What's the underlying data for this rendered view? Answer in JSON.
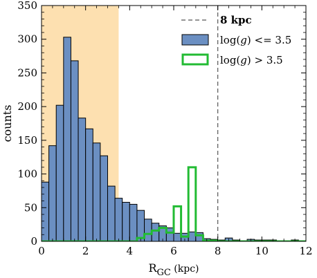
{
  "chart_data": {
    "type": "histogram",
    "xlabel": {
      "main": "R",
      "sub": "GC",
      "rest": " (kpc)"
    },
    "ylabel": "counts",
    "xlim": [
      0,
      12
    ],
    "ylim": [
      0,
      350
    ],
    "xticks": [
      0,
      2,
      4,
      6,
      8,
      10,
      12
    ],
    "yticks": [
      0,
      50,
      100,
      150,
      200,
      250,
      300,
      350
    ],
    "bin_width": 0.3333,
    "shaded_region": {
      "x0": 0,
      "x1": 3.5,
      "color": "#fde0b0"
    },
    "vline": {
      "x": 8,
      "label": "8 kpc",
      "style": "dashed",
      "color": "#555555"
    },
    "legend_position": "top-right",
    "series": [
      {
        "name": "log(g) <= 3.5",
        "legend_label": {
          "pre": "log(",
          "var": "g",
          "post": ") <= 3.5"
        },
        "style": "filled",
        "color": "#6b8fc2",
        "edge_color": "#000000",
        "bin_edges_start": 0,
        "values": [
          88,
          142,
          202,
          303,
          268,
          183,
          167,
          146,
          127,
          82,
          64,
          58,
          55,
          46,
          33,
          27,
          23,
          20,
          12,
          12,
          14,
          13,
          4,
          3,
          2,
          5,
          2,
          1,
          3,
          2,
          2,
          2,
          1,
          1,
          2,
          1
        ]
      },
      {
        "name": "log(g) > 3.5",
        "legend_label": {
          "pre": "log(",
          "var": "g",
          "post": ") > 3.5"
        },
        "style": "step",
        "color": "#22bb33",
        "bin_edges_start": 0,
        "values": [
          0,
          0,
          0,
          0,
          0,
          0,
          0,
          0,
          0,
          0,
          0,
          0,
          0,
          5,
          11,
          16,
          20,
          13,
          52,
          7,
          110,
          9,
          1,
          1,
          0,
          0,
          0,
          0,
          0,
          0,
          0,
          0,
          0,
          0,
          0,
          0
        ]
      }
    ]
  }
}
